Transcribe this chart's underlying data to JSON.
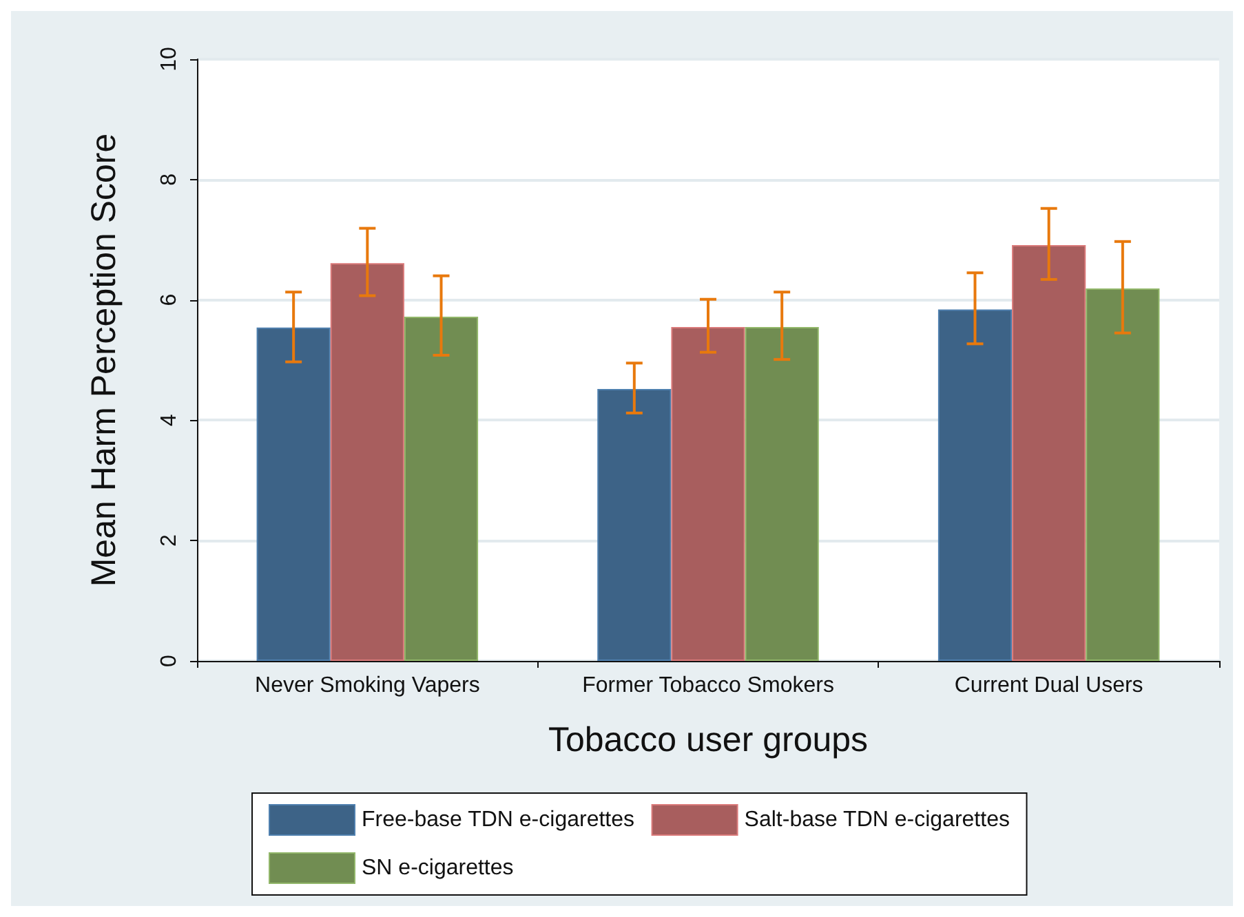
{
  "chart_data": {
    "type": "bar",
    "xlabel": "Tobacco user groups",
    "ylabel": "Mean Harm Perception Score",
    "categories": [
      "Never Smoking Vapers",
      "Former Tobacco Smokers",
      "Current Dual Users"
    ],
    "series": [
      {
        "name": "Free-base TDN e-cigarettes",
        "color": "#3d6387",
        "values": [
          5.54,
          4.52,
          5.84
        ],
        "errors": [
          [
            4.97,
            6.13
          ],
          [
            4.12,
            4.95
          ],
          [
            5.27,
            6.45
          ]
        ]
      },
      {
        "name": "Salt-base TDN e-cigarettes",
        "color": "#a85e5e",
        "values": [
          6.61,
          5.55,
          6.91
        ],
        "errors": [
          [
            6.07,
            7.19
          ],
          [
            5.13,
            6.01
          ],
          [
            6.34,
            7.52
          ]
        ]
      },
      {
        "name": "SN e-cigarettes",
        "color": "#718d52",
        "values": [
          5.72,
          5.55,
          6.19
        ],
        "errors": [
          [
            5.08,
            6.4
          ],
          [
            5.01,
            6.13
          ],
          [
            5.45,
            6.97
          ]
        ]
      }
    ],
    "ylim": [
      0,
      10
    ],
    "yticks": [
      0,
      2,
      4,
      6,
      8,
      10
    ],
    "grid": "y",
    "legend": "bottom"
  }
}
